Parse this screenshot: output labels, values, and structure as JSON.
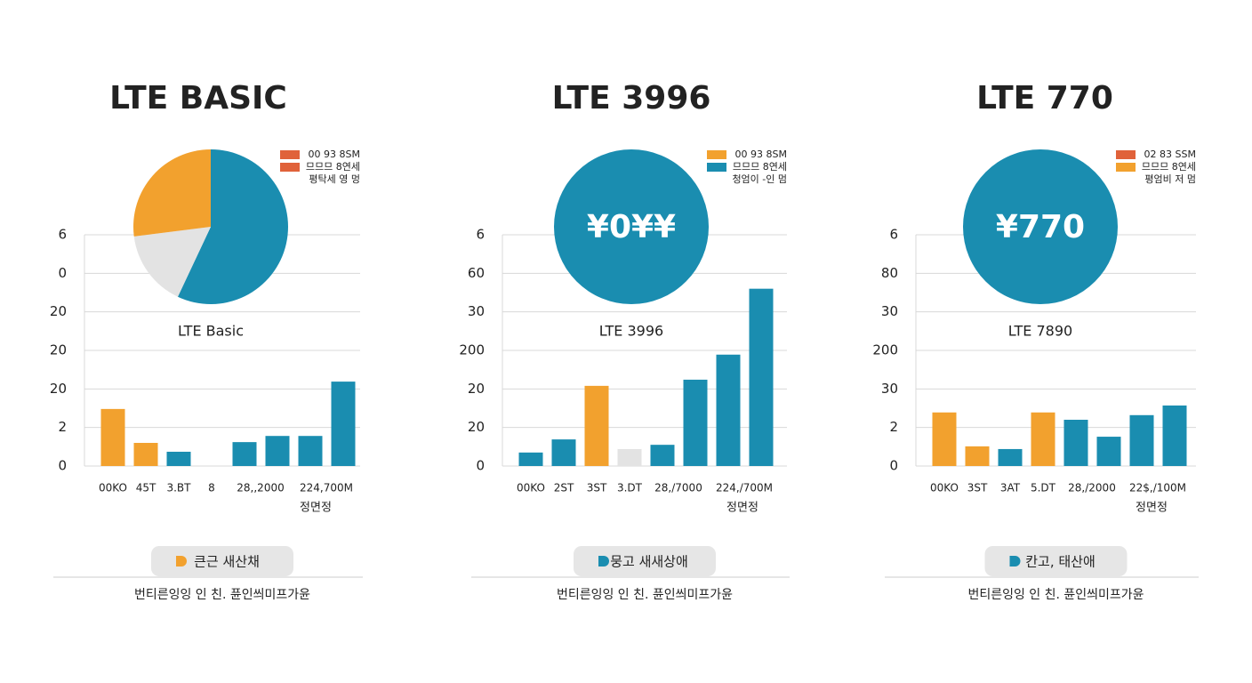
{
  "chart_data": [
    {
      "type": "bar",
      "title": "LTE BASIC",
      "subtitle": "LTE Basic",
      "pie": {
        "values": [
          57,
          16,
          27
        ],
        "colors": [
          "#1a8db0",
          "#e3e3e3",
          "#f2a12e"
        ]
      },
      "legend": [
        {
          "name": "00 93 8SM",
          "color": "#e0623a"
        },
        {
          "name": "므므므 8연세",
          "color": "#e0623a"
        },
        {
          "name": "평탁세 영 멍"
        }
      ],
      "categories": [
        "00KO",
        "45T",
        "3.BT",
        "8",
        "28,,2000",
        null,
        "224,700M",
        null
      ],
      "values": [
        1.48,
        0.6,
        0.37,
        0,
        0.62,
        0.78,
        0.78,
        2.19
      ],
      "colors": [
        "#f2a12e",
        "#f2a12e",
        "#1a8db0",
        "#1a8db0",
        "#1a8db0",
        "#1a8db0",
        "#1a8db0",
        "#1a8db0"
      ],
      "ylim": [
        0,
        6
      ],
      "yticks": [
        {
          "value": 0,
          "label": "0"
        },
        {
          "value": 1,
          "label": "2"
        },
        {
          "value": 2,
          "label": "20"
        },
        {
          "value": 3,
          "label": "20"
        },
        {
          "value": 4,
          "label": "20"
        },
        {
          "value": 5,
          "label": "0"
        },
        {
          "value": 6,
          "label": "6"
        }
      ],
      "grid": true,
      "axis_note": "정면정",
      "button": "큰근 새산채",
      "button_color": "#f2a12e",
      "footer": "번티른잉잉 인 친. 퓬인씌미프가윤"
    },
    {
      "type": "bar",
      "title": "LTE 3996",
      "subtitle": "LTE 3996",
      "pie": {
        "values": [
          100
        ],
        "colors": [
          "#1a8db0"
        ],
        "label": "¥0¥¥"
      },
      "legend": [
        {
          "name": "00 93 8SM",
          "color": "#f2a12e"
        },
        {
          "name": "므므므 8연세",
          "color": "#1a8db0"
        },
        {
          "name": "청엄이 -인 멈"
        }
      ],
      "categories": [
        "00KO",
        "2ST",
        "3ST",
        "3.DT",
        "28,/7000",
        null,
        "224,/700M",
        null
      ],
      "values": [
        0.35,
        0.69,
        2.08,
        0.44,
        0.55,
        2.24,
        2.89,
        4.6
      ],
      "colors": [
        "#1a8db0",
        "#1a8db0",
        "#f2a12e",
        "#e3e3e3",
        "#1a8db0",
        "#1a8db0",
        "#1a8db0",
        "#1a8db0"
      ],
      "ylim": [
        0,
        6
      ],
      "yticks": [
        {
          "value": 0,
          "label": "0"
        },
        {
          "value": 1,
          "label": "20"
        },
        {
          "value": 2,
          "label": "20"
        },
        {
          "value": 3,
          "label": "200"
        },
        {
          "value": 4,
          "label": "30"
        },
        {
          "value": 5,
          "label": "60"
        },
        {
          "value": 6,
          "label": "6"
        }
      ],
      "grid": true,
      "axis_note": "정면정",
      "button": "뭉고 새새상애",
      "button_color": "#1a8db0",
      "footer": "번티른잉잉 인 친. 퓬인씌미프가윤"
    },
    {
      "type": "bar",
      "title": "LTE 770",
      "subtitle": "LTE 7890",
      "pie": {
        "values": [
          100
        ],
        "colors": [
          "#1a8db0"
        ],
        "label": "¥770"
      },
      "legend": [
        {
          "name": "02 83 SSM",
          "color": "#e0623a"
        },
        {
          "name": "므므므 8연세",
          "color": "#f2a12e"
        },
        {
          "name": "평엄비 저 멈"
        }
      ],
      "categories": [
        "00KO",
        "3ST",
        "3AT",
        "5.DT",
        "28,/2000",
        null,
        "22$,/100M",
        null
      ],
      "values": [
        1.39,
        0.51,
        0.44,
        1.39,
        1.2,
        0.76,
        1.32,
        1.57
      ],
      "colors": [
        "#f2a12e",
        "#f2a12e",
        "#1a8db0",
        "#f2a12e",
        "#1a8db0",
        "#1a8db0",
        "#1a8db0",
        "#1a8db0"
      ],
      "ylim": [
        0,
        6
      ],
      "yticks": [
        {
          "value": 0,
          "label": "0"
        },
        {
          "value": 1,
          "label": "2"
        },
        {
          "value": 2,
          "label": "30"
        },
        {
          "value": 3,
          "label": "200"
        },
        {
          "value": 4,
          "label": "30"
        },
        {
          "value": 5,
          "label": "80"
        },
        {
          "value": 6,
          "label": "6"
        }
      ],
      "grid": true,
      "axis_note": "정면정",
      "button": "칸고, 태산애",
      "button_color": "#1a8db0",
      "footer": "번티른잉잉 인 친. 퓬인씌미프가윤"
    }
  ]
}
